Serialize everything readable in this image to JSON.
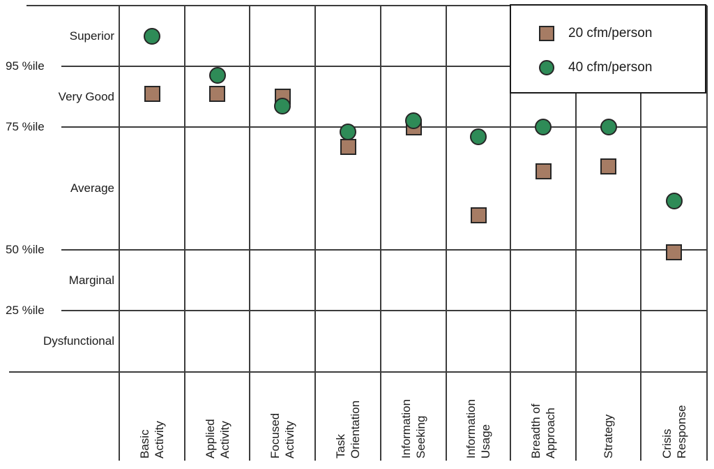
{
  "chart_data": {
    "type": "scatter",
    "legend": {
      "position": "top-right",
      "entries": [
        {
          "label": "20 cfm/person",
          "marker": "square",
          "color": "#A67C64"
        },
        {
          "label": "40 cfm/person",
          "marker": "circle",
          "color": "#2E8B57"
        }
      ]
    },
    "x_axis": {
      "categories": [
        {
          "label": "Basic Activity",
          "lines": [
            "Basic",
            "Activity"
          ]
        },
        {
          "label": "Applied Activity",
          "lines": [
            "Applied",
            "Activity"
          ]
        },
        {
          "label": "Focused Activity",
          "lines": [
            "Focused",
            "Activity"
          ]
        },
        {
          "label": "Task Orientation",
          "lines": [
            "Task",
            "Orientation"
          ]
        },
        {
          "label": "Information Seeking",
          "lines": [
            "Information",
            "Seeking"
          ]
        },
        {
          "label": "Information Usage",
          "lines": [
            "Information",
            "Usage"
          ]
        },
        {
          "label": "Breadth of Approach",
          "lines": [
            "Breadth of",
            "Approach"
          ]
        },
        {
          "label": "Strategy",
          "lines": [
            "Strategy"
          ]
        },
        {
          "label": "Crisis Response",
          "lines": [
            "Crisis",
            "Response"
          ]
        }
      ]
    },
    "y_axis": {
      "unit": "percentile",
      "scale": "nonlinear-percentile",
      "range": [
        0,
        100
      ],
      "gridlines": [
        {
          "label": "95 %ile",
          "value": 95
        },
        {
          "label": "75 %ile",
          "value": 75
        },
        {
          "label": "50 %ile",
          "value": 50
        },
        {
          "label": "25 %ile",
          "value": 25
        }
      ],
      "regions": [
        {
          "label": "Superior",
          "from": 95,
          "to": 100
        },
        {
          "label": "Very Good",
          "from": 75,
          "to": 95
        },
        {
          "label": "Average",
          "from": 50,
          "to": 75
        },
        {
          "label": "Marginal",
          "from": 25,
          "to": 50
        },
        {
          "label": "Dysfunctional",
          "from": 0,
          "to": 25
        }
      ]
    },
    "series": [
      {
        "name": "20 cfm/person",
        "marker": "square",
        "color": "#A67C64",
        "values": [
          86,
          86,
          85,
          71,
          75,
          57,
          66,
          67,
          49
        ]
      },
      {
        "name": "40 cfm/person",
        "marker": "circle",
        "color": "#2E8B57",
        "values": [
          97.5,
          92,
          82,
          74,
          77,
          73,
          75,
          75,
          60
        ]
      }
    ],
    "grid": true,
    "colors": {
      "grid_line": "#3C3C3C",
      "text": "#1B1B1B",
      "background": "#FFFFFF",
      "marker_border": "#262626"
    }
  }
}
